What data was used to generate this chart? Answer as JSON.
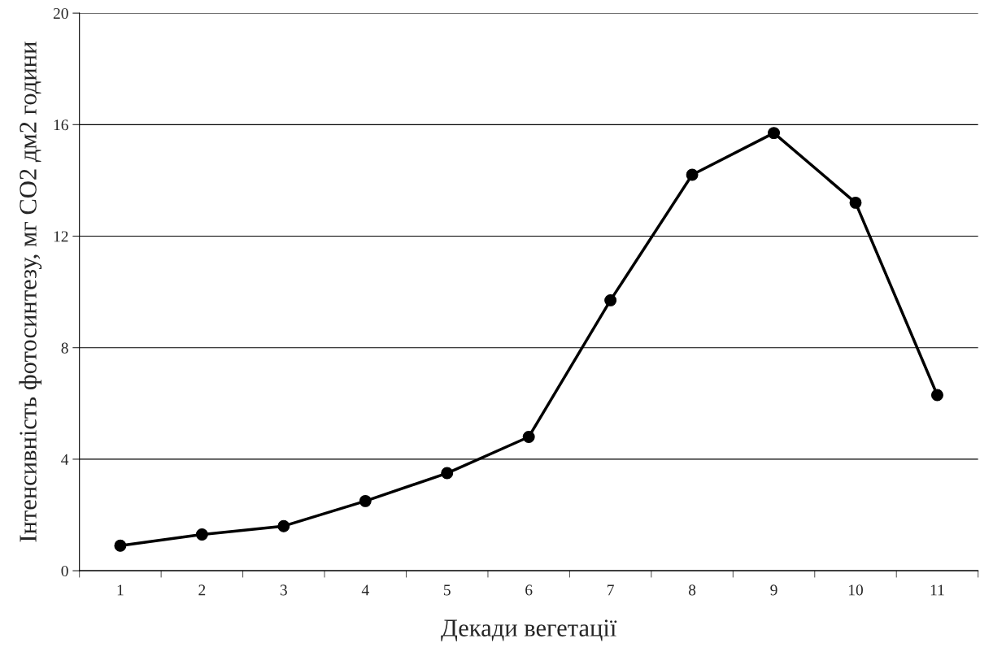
{
  "chart_data": {
    "type": "line",
    "xlabel": "Декади вегетації",
    "ylabel": "Інтенсивність фотосинтезу, мг CO2 дм2 години",
    "categories": [
      "1",
      "2",
      "3",
      "4",
      "5",
      "6",
      "7",
      "8",
      "9",
      "10",
      "11"
    ],
    "series": [
      {
        "color": "#000000",
        "values": [
          0.9,
          1.3,
          1.6,
          2.5,
          3.5,
          4.8,
          9.7,
          14.2,
          15.7,
          13.2,
          6.3
        ]
      }
    ],
    "ylim": [
      0,
      20
    ],
    "yticks": [
      0,
      4,
      8,
      12,
      16,
      20
    ],
    "grid": "y",
    "marker": "circle",
    "line_style": "solid"
  }
}
